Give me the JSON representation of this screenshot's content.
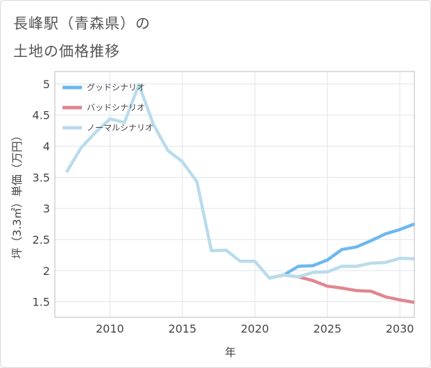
{
  "title_line1": "長峰駅（青森県）の",
  "title_line2": "土地の価格推移",
  "chart_data": {
    "type": "line",
    "xlabel": "年",
    "ylabel": "坪（3.3㎡）単価（万円）",
    "xlim": [
      2006.2,
      2031
    ],
    "ylim": [
      1.25,
      5.2
    ],
    "xticks": [
      2010,
      2015,
      2020,
      2025,
      2030
    ],
    "yticks": [
      1.5,
      2,
      2.5,
      3,
      3.5,
      4,
      4.5,
      5
    ],
    "grid": true,
    "legend_position": "top-left",
    "series": [
      {
        "name": "グッドシナリオ",
        "color": "#6cb8ee",
        "x": [
          2021,
          2022,
          2023,
          2024,
          2025,
          2026,
          2027,
          2028,
          2029,
          2030,
          2031
        ],
        "y": [
          1.88,
          1.93,
          2.07,
          2.08,
          2.17,
          2.34,
          2.38,
          2.48,
          2.59,
          2.66,
          2.75
        ]
      },
      {
        "name": "バッドシナリオ",
        "color": "#e0868f",
        "x": [
          2021,
          2022,
          2023,
          2024,
          2025,
          2026,
          2027,
          2028,
          2029,
          2030,
          2031
        ],
        "y": [
          1.88,
          1.93,
          1.9,
          1.84,
          1.75,
          1.72,
          1.68,
          1.67,
          1.58,
          1.53,
          1.49
        ]
      },
      {
        "name": "ノーマルシナリオ",
        "color": "#b9dcec",
        "x": [
          2007,
          2008,
          2009,
          2010,
          2011,
          2012,
          2013,
          2014,
          2015,
          2016,
          2017,
          2018,
          2019,
          2020,
          2021,
          2022,
          2023,
          2024,
          2025,
          2026,
          2027,
          2028,
          2029,
          2030,
          2031
        ],
        "y": [
          3.58,
          3.97,
          4.22,
          4.44,
          4.38,
          4.99,
          4.35,
          3.93,
          3.75,
          3.43,
          2.32,
          2.33,
          2.15,
          2.15,
          1.88,
          1.93,
          1.9,
          1.97,
          1.98,
          2.07,
          2.07,
          2.12,
          2.13,
          2.2,
          2.19
        ]
      }
    ]
  }
}
